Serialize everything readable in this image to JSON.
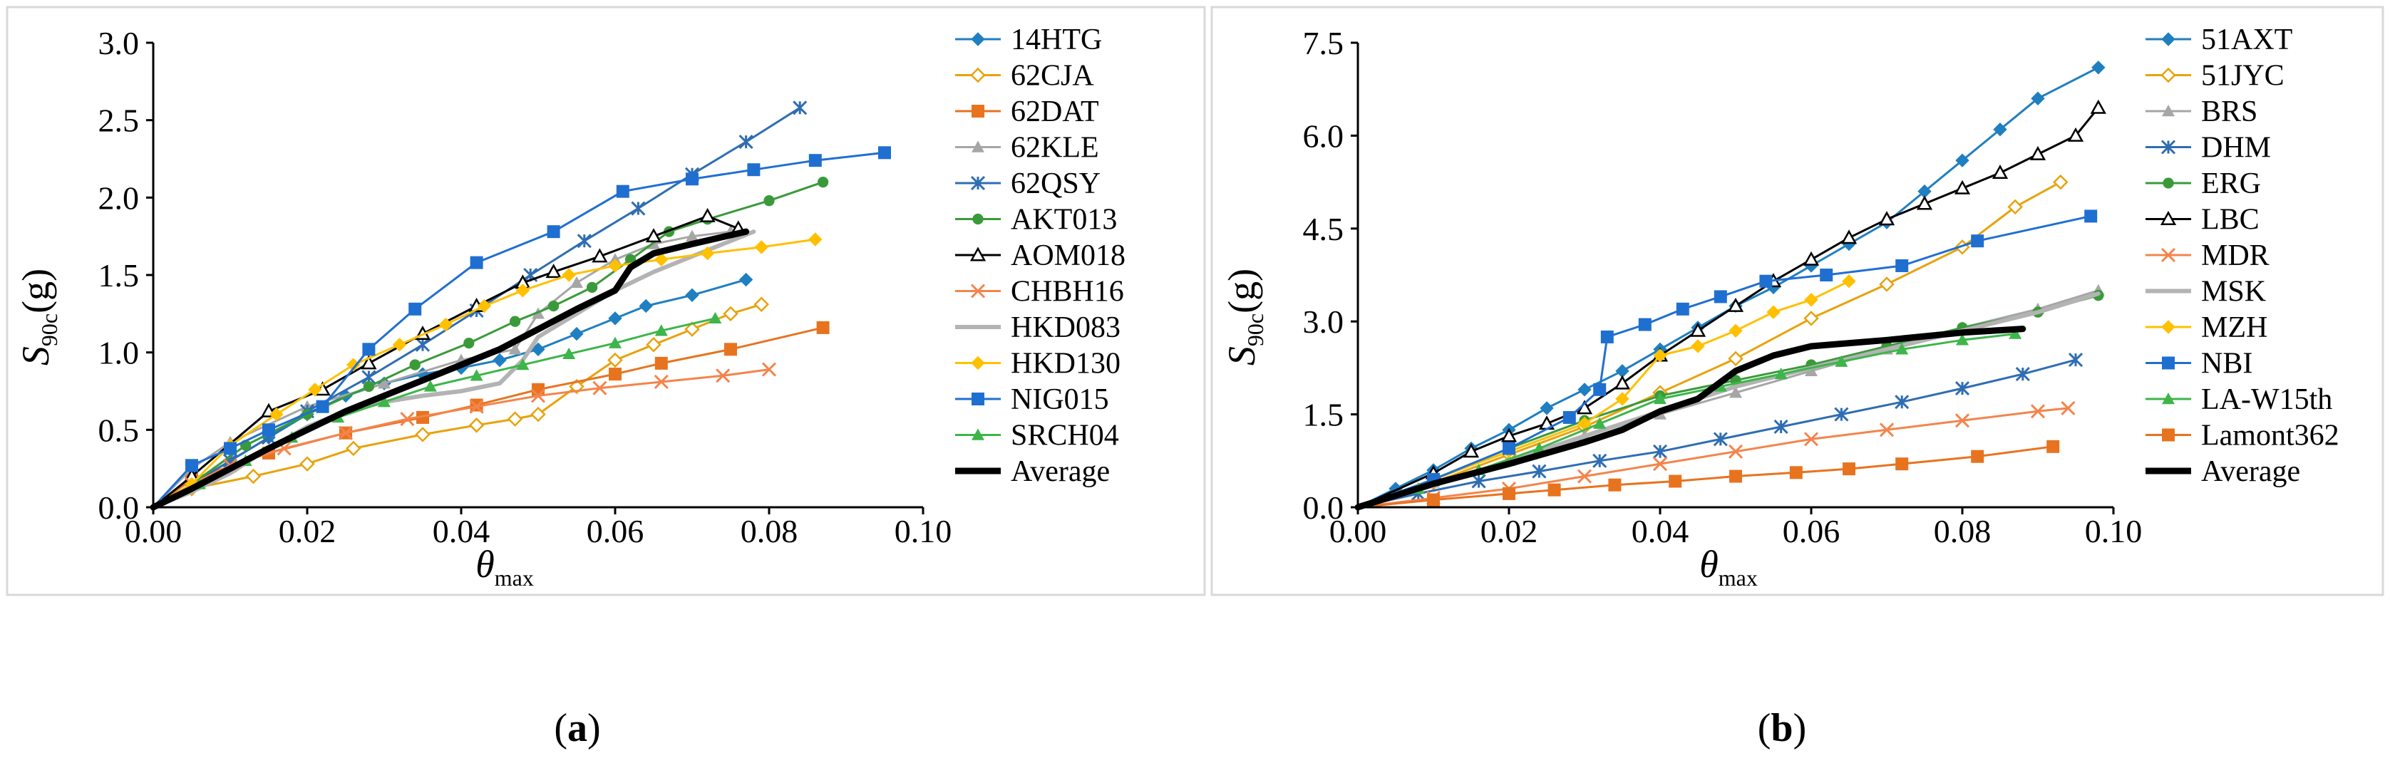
{
  "chart_data": [
    {
      "type": "line",
      "panel_label": "a",
      "xlabel": "θ",
      "xlabel_sub": "max",
      "ylabel": "S",
      "ylabel_sub": "90c",
      "ylabel_unit": "(g)",
      "xlim": [
        0,
        0.1
      ],
      "ylim": [
        0,
        3.0
      ],
      "x_ticks": [
        0,
        0.02,
        0.04,
        0.06,
        0.08,
        0.1
      ],
      "x_tick_labels": [
        "0.00",
        "0.02",
        "0.04",
        "0.06",
        "0.08",
        "0.10"
      ],
      "y_ticks": [
        0,
        0.5,
        1.0,
        1.5,
        2.0,
        2.5,
        3.0
      ],
      "y_tick_labels": [
        "0.0",
        "0.5",
        "1.0",
        "1.5",
        "2.0",
        "2.5",
        "3.0"
      ],
      "grid": false,
      "legend_position": "right",
      "series": [
        {
          "name": "14HTG",
          "color": "#1f7fc1",
          "marker": "diamond-filled",
          "width": 3,
          "x": [
            0,
            0.005,
            0.01,
            0.015,
            0.02,
            0.025,
            0.03,
            0.035,
            0.04,
            0.045,
            0.05,
            0.055,
            0.06,
            0.064,
            0.07,
            0.077
          ],
          "y": [
            0,
            0.15,
            0.3,
            0.45,
            0.6,
            0.72,
            0.8,
            0.86,
            0.9,
            0.95,
            1.02,
            1.12,
            1.22,
            1.3,
            1.37,
            1.47
          ]
        },
        {
          "name": "62CJA",
          "color": "#e8a20c",
          "marker": "diamond-open",
          "width": 3,
          "x": [
            0,
            0.005,
            0.013,
            0.02,
            0.026,
            0.035,
            0.042,
            0.047,
            0.05,
            0.055,
            0.06,
            0.065,
            0.07,
            0.075,
            0.079
          ],
          "y": [
            0,
            0.12,
            0.2,
            0.28,
            0.38,
            0.47,
            0.53,
            0.57,
            0.6,
            0.78,
            0.95,
            1.05,
            1.15,
            1.25,
            1.31
          ]
        },
        {
          "name": "62DAT",
          "color": "#e8731f",
          "marker": "square-filled",
          "width": 3,
          "x": [
            0,
            0.005,
            0.015,
            0.025,
            0.035,
            0.042,
            0.05,
            0.06,
            0.066,
            0.075,
            0.087
          ],
          "y": [
            0,
            0.18,
            0.35,
            0.48,
            0.58,
            0.66,
            0.76,
            0.86,
            0.93,
            1.02,
            1.16
          ]
        },
        {
          "name": "62KLE",
          "color": "#a6a6a6",
          "marker": "triangle-filled",
          "width": 3,
          "x": [
            0,
            0.005,
            0.01,
            0.02,
            0.03,
            0.04,
            0.047,
            0.05,
            0.055,
            0.06,
            0.065,
            0.07,
            0.075
          ],
          "y": [
            0,
            0.25,
            0.42,
            0.65,
            0.8,
            0.95,
            1.02,
            1.25,
            1.45,
            1.6,
            1.7,
            1.75,
            1.78
          ]
        },
        {
          "name": "62QSY",
          "color": "#2f6db3",
          "marker": "star",
          "width": 3,
          "x": [
            0,
            0.005,
            0.01,
            0.015,
            0.02,
            0.028,
            0.035,
            0.042,
            0.049,
            0.056,
            0.063,
            0.07,
            0.077,
            0.084
          ],
          "y": [
            0,
            0.15,
            0.3,
            0.45,
            0.62,
            0.84,
            1.05,
            1.27,
            1.5,
            1.72,
            1.93,
            2.15,
            2.36,
            2.58
          ]
        },
        {
          "name": "AKT013",
          "color": "#3a9a3a",
          "marker": "circle-filled",
          "width": 3,
          "x": [
            0,
            0.005,
            0.012,
            0.02,
            0.028,
            0.034,
            0.041,
            0.047,
            0.052,
            0.057,
            0.062,
            0.067,
            0.072,
            0.08,
            0.087
          ],
          "y": [
            0,
            0.15,
            0.4,
            0.6,
            0.78,
            0.92,
            1.06,
            1.2,
            1.3,
            1.42,
            1.6,
            1.78,
            1.86,
            1.98,
            2.1
          ]
        },
        {
          "name": "AOM018",
          "color": "#000000",
          "marker": "triangle-open",
          "width": 3,
          "x": [
            0,
            0.005,
            0.015,
            0.022,
            0.028,
            0.035,
            0.042,
            0.048,
            0.052,
            0.058,
            0.065,
            0.072,
            0.076
          ],
          "y": [
            0,
            0.2,
            0.62,
            0.76,
            0.93,
            1.12,
            1.3,
            1.45,
            1.52,
            1.62,
            1.75,
            1.88,
            1.8
          ]
        },
        {
          "name": "CHBH16",
          "color": "#f4844c",
          "marker": "x",
          "width": 3,
          "x": [
            0,
            0.005,
            0.01,
            0.017,
            0.025,
            0.033,
            0.042,
            0.05,
            0.058,
            0.066,
            0.074,
            0.08
          ],
          "y": [
            0,
            0.15,
            0.27,
            0.38,
            0.48,
            0.57,
            0.65,
            0.72,
            0.77,
            0.81,
            0.85,
            0.89
          ]
        },
        {
          "name": "HKD083",
          "color": "#b3b3b3",
          "marker": "none",
          "width": 6,
          "x": [
            0,
            0.005,
            0.01,
            0.015,
            0.02,
            0.025,
            0.03,
            0.035,
            0.04,
            0.045,
            0.048,
            0.05,
            0.055,
            0.06,
            0.065,
            0.07,
            0.075,
            0.078
          ],
          "y": [
            0,
            0.1,
            0.22,
            0.38,
            0.52,
            0.62,
            0.68,
            0.72,
            0.75,
            0.8,
            0.95,
            1.1,
            1.25,
            1.4,
            1.52,
            1.62,
            1.72,
            1.78
          ]
        },
        {
          "name": "HKD130",
          "color": "#ffc000",
          "marker": "diamond-filled",
          "width": 3,
          "x": [
            0,
            0.005,
            0.01,
            0.016,
            0.021,
            0.026,
            0.032,
            0.038,
            0.043,
            0.048,
            0.054,
            0.06,
            0.066,
            0.072,
            0.079,
            0.086
          ],
          "y": [
            0,
            0.15,
            0.4,
            0.6,
            0.76,
            0.92,
            1.05,
            1.18,
            1.3,
            1.4,
            1.5,
            1.56,
            1.6,
            1.64,
            1.68,
            1.73
          ]
        },
        {
          "name": "NIG015",
          "color": "#1f6fd1",
          "marker": "square-filled",
          "width": 3,
          "x": [
            0,
            0.005,
            0.01,
            0.015,
            0.022,
            0.028,
            0.034,
            0.042,
            0.052,
            0.061,
            0.07,
            0.078,
            0.086,
            0.095
          ],
          "y": [
            0,
            0.27,
            0.38,
            0.5,
            0.65,
            1.02,
            1.28,
            1.58,
            1.78,
            2.04,
            2.12,
            2.18,
            2.24,
            2.29
          ]
        },
        {
          "name": "SRCH04",
          "color": "#3db54a",
          "marker": "triangle-filled",
          "width": 3,
          "x": [
            0,
            0.006,
            0.012,
            0.018,
            0.024,
            0.03,
            0.036,
            0.042,
            0.048,
            0.054,
            0.06,
            0.066,
            0.073
          ],
          "y": [
            0,
            0.15,
            0.3,
            0.45,
            0.58,
            0.68,
            0.78,
            0.85,
            0.92,
            0.99,
            1.06,
            1.14,
            1.22
          ]
        },
        {
          "name": "Average",
          "color": "#000000",
          "marker": "none",
          "width": 9,
          "x": [
            0,
            0.005,
            0.01,
            0.015,
            0.02,
            0.025,
            0.03,
            0.035,
            0.04,
            0.045,
            0.05,
            0.055,
            0.06,
            0.062,
            0.065,
            0.07,
            0.077
          ],
          "y": [
            0,
            0.12,
            0.25,
            0.38,
            0.5,
            0.62,
            0.72,
            0.82,
            0.92,
            1.02,
            1.15,
            1.28,
            1.4,
            1.55,
            1.64,
            1.7,
            1.78
          ]
        }
      ]
    },
    {
      "type": "line",
      "panel_label": "b",
      "xlabel": "θ",
      "xlabel_sub": "max",
      "ylabel": "S",
      "ylabel_sub": "90c",
      "ylabel_unit": "(g)",
      "xlim": [
        0,
        0.1
      ],
      "ylim": [
        0,
        7.5
      ],
      "x_ticks": [
        0,
        0.02,
        0.04,
        0.06,
        0.08,
        0.1
      ],
      "x_tick_labels": [
        "0.00",
        "0.02",
        "0.04",
        "0.06",
        "0.08",
        "0.10"
      ],
      "y_ticks": [
        0,
        1.5,
        3.0,
        4.5,
        6.0,
        7.5
      ],
      "y_tick_labels": [
        "0.0",
        "1.5",
        "3.0",
        "4.5",
        "6.0",
        "7.5"
      ],
      "grid": false,
      "legend_position": "right",
      "series": [
        {
          "name": "51AXT",
          "color": "#1f7fc1",
          "marker": "diamond-filled",
          "width": 3,
          "x": [
            0,
            0.005,
            0.01,
            0.015,
            0.02,
            0.025,
            0.03,
            0.035,
            0.04,
            0.045,
            0.05,
            0.055,
            0.06,
            0.065,
            0.07,
            0.075,
            0.08,
            0.085,
            0.09,
            0.098
          ],
          "y": [
            0,
            0.3,
            0.6,
            0.95,
            1.25,
            1.6,
            1.9,
            2.2,
            2.55,
            2.9,
            3.25,
            3.55,
            3.9,
            4.25,
            4.6,
            5.1,
            5.6,
            6.1,
            6.6,
            7.1
          ]
        },
        {
          "name": "51JYC",
          "color": "#e8a20c",
          "marker": "diamond-open",
          "width": 3,
          "x": [
            0,
            0.01,
            0.02,
            0.03,
            0.04,
            0.05,
            0.06,
            0.07,
            0.08,
            0.087,
            0.093
          ],
          "y": [
            0,
            0.4,
            0.85,
            1.3,
            1.85,
            2.4,
            3.05,
            3.6,
            4.2,
            4.85,
            5.25
          ]
        },
        {
          "name": "BRS",
          "color": "#a6a6a6",
          "marker": "triangle-filled",
          "width": 3,
          "x": [
            0,
            0.01,
            0.02,
            0.03,
            0.04,
            0.05,
            0.06,
            0.07,
            0.08,
            0.09,
            0.098
          ],
          "y": [
            0,
            0.4,
            0.75,
            1.15,
            1.5,
            1.85,
            2.2,
            2.55,
            2.9,
            3.2,
            3.5
          ]
        },
        {
          "name": "DHM",
          "color": "#2f6db3",
          "marker": "star",
          "width": 3,
          "x": [
            0,
            0.008,
            0.016,
            0.024,
            0.032,
            0.04,
            0.048,
            0.056,
            0.064,
            0.072,
            0.08,
            0.088,
            0.095
          ],
          "y": [
            0,
            0.22,
            0.42,
            0.58,
            0.75,
            0.9,
            1.1,
            1.3,
            1.5,
            1.7,
            1.92,
            2.15,
            2.38
          ]
        },
        {
          "name": "ERG",
          "color": "#3a9a3a",
          "marker": "circle-filled",
          "width": 3,
          "x": [
            0,
            0.01,
            0.02,
            0.03,
            0.04,
            0.05,
            0.06,
            0.07,
            0.08,
            0.09,
            0.098
          ],
          "y": [
            0,
            0.45,
            0.95,
            1.4,
            1.8,
            2.05,
            2.3,
            2.6,
            2.9,
            3.15,
            3.42
          ]
        },
        {
          "name": "LBC",
          "color": "#000000",
          "marker": "triangle-open",
          "width": 3,
          "x": [
            0,
            0.01,
            0.015,
            0.02,
            0.025,
            0.03,
            0.035,
            0.04,
            0.045,
            0.05,
            0.055,
            0.06,
            0.065,
            0.07,
            0.075,
            0.08,
            0.085,
            0.09,
            0.095,
            0.098
          ],
          "y": [
            0,
            0.55,
            0.9,
            1.15,
            1.35,
            1.6,
            2.0,
            2.45,
            2.85,
            3.25,
            3.65,
            4.0,
            4.35,
            4.65,
            4.9,
            5.15,
            5.4,
            5.7,
            6.0,
            6.45
          ]
        },
        {
          "name": "MDR",
          "color": "#f4844c",
          "marker": "x",
          "width": 3,
          "x": [
            0,
            0.01,
            0.02,
            0.03,
            0.04,
            0.05,
            0.06,
            0.07,
            0.08,
            0.09,
            0.094
          ],
          "y": [
            0,
            0.15,
            0.3,
            0.5,
            0.7,
            0.9,
            1.1,
            1.25,
            1.4,
            1.55,
            1.6
          ]
        },
        {
          "name": "MSK",
          "color": "#b3b3b3",
          "marker": "none",
          "width": 6,
          "x": [
            0,
            0.01,
            0.02,
            0.03,
            0.04,
            0.05,
            0.06,
            0.07,
            0.08,
            0.09,
            0.098
          ],
          "y": [
            0,
            0.35,
            0.75,
            1.15,
            1.55,
            1.95,
            2.25,
            2.55,
            2.85,
            3.15,
            3.45
          ]
        },
        {
          "name": "MZH",
          "color": "#ffc000",
          "marker": "diamond-filled",
          "width": 3,
          "x": [
            0,
            0.01,
            0.02,
            0.03,
            0.035,
            0.04,
            0.045,
            0.05,
            0.055,
            0.06,
            0.065
          ],
          "y": [
            0,
            0.45,
            0.9,
            1.35,
            1.75,
            2.45,
            2.6,
            2.85,
            3.15,
            3.35,
            3.65
          ]
        },
        {
          "name": "NBI",
          "color": "#1f6fd1",
          "marker": "square-filled",
          "width": 3,
          "x": [
            0,
            0.01,
            0.02,
            0.028,
            0.032,
            0.033,
            0.038,
            0.043,
            0.048,
            0.054,
            0.062,
            0.072,
            0.082,
            0.097
          ],
          "y": [
            0,
            0.45,
            0.95,
            1.45,
            1.9,
            2.75,
            2.95,
            3.2,
            3.4,
            3.65,
            3.75,
            3.9,
            4.3,
            4.7
          ]
        },
        {
          "name": "LA-W15th",
          "color": "#3db54a",
          "marker": "triangle-filled",
          "width": 3,
          "x": [
            0,
            0.008,
            0.016,
            0.024,
            0.032,
            0.04,
            0.048,
            0.056,
            0.064,
            0.072,
            0.08,
            0.087
          ],
          "y": [
            0,
            0.3,
            0.6,
            0.95,
            1.35,
            1.75,
            1.95,
            2.15,
            2.35,
            2.55,
            2.7,
            2.8
          ]
        },
        {
          "name": "Lamont362",
          "color": "#e8731f",
          "marker": "square-filled",
          "width": 3,
          "x": [
            0,
            0.01,
            0.02,
            0.026,
            0.034,
            0.042,
            0.05,
            0.058,
            0.065,
            0.072,
            0.082,
            0.092
          ],
          "y": [
            0,
            0.12,
            0.22,
            0.28,
            0.36,
            0.42,
            0.5,
            0.56,
            0.62,
            0.7,
            0.82,
            0.98
          ]
        },
        {
          "name": "Average",
          "color": "#000000",
          "marker": "none",
          "width": 9,
          "x": [
            0,
            0.01,
            0.02,
            0.03,
            0.035,
            0.04,
            0.045,
            0.05,
            0.055,
            0.06,
            0.07,
            0.08,
            0.088
          ],
          "y": [
            0,
            0.38,
            0.7,
            1.05,
            1.25,
            1.55,
            1.75,
            2.2,
            2.45,
            2.6,
            2.7,
            2.82,
            2.88
          ]
        }
      ]
    }
  ]
}
